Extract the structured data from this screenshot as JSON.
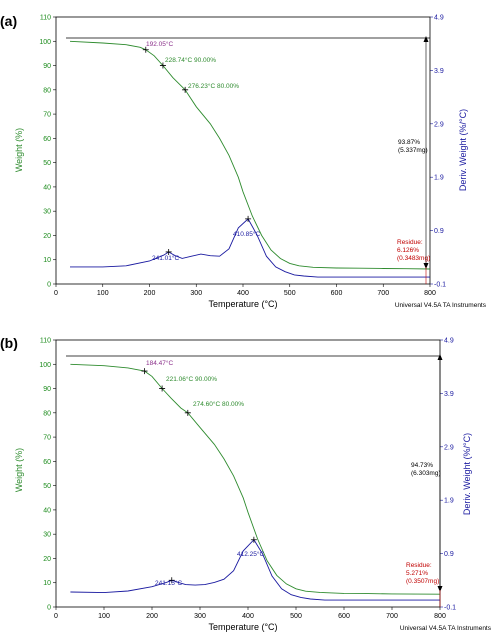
{
  "chart_data": [
    {
      "type": "line",
      "panel_label": "(a)",
      "xlabel": "Temperature (°C)",
      "ylabel": "Weight (%)",
      "y2label": "Deriv. Weight (%/°C)",
      "footer": "Universal V4.5A TA Instruments",
      "xlim": [
        0,
        800
      ],
      "ylim": [
        0,
        110
      ],
      "y2lim": [
        -0.1,
        4.9
      ],
      "xticks": [
        0,
        100,
        200,
        300,
        400,
        500,
        600,
        700,
        800
      ],
      "yticks": [
        0,
        10,
        20,
        30,
        40,
        50,
        60,
        70,
        80,
        90,
        100,
        110
      ],
      "y2ticks": [
        "-0.1",
        "0.9",
        "1.9",
        "2.9",
        "3.9",
        "4.9"
      ],
      "series": [
        {
          "axis": "left",
          "color": "#2e8b2e",
          "x": [
            30,
            100,
            150,
            180,
            192,
            210,
            228.74,
            250,
            276.23,
            300,
            330,
            350,
            370,
            390,
            400,
            420,
            440,
            460,
            480,
            500,
            520,
            550,
            600,
            650,
            700,
            750,
            800
          ],
          "y": [
            100,
            99.3,
            98.6,
            97.5,
            96.5,
            94,
            90,
            85,
            80,
            73,
            66,
            60,
            53,
            44,
            38,
            28,
            20,
            14,
            10.5,
            8.5,
            7.5,
            6.9,
            6.6,
            6.5,
            6.4,
            6.3,
            6.2
          ]
        },
        {
          "axis": "right",
          "color": "#1a1aa0",
          "x": [
            30,
            100,
            150,
            200,
            230,
            241.01,
            255,
            270,
            290,
            310,
            330,
            350,
            370,
            390,
            410.85,
            430,
            450,
            470,
            490,
            510,
            530,
            560,
            600,
            650,
            700,
            750,
            800
          ],
          "y": [
            0.22,
            0.22,
            0.24,
            0.33,
            0.44,
            0.5,
            0.43,
            0.38,
            0.42,
            0.46,
            0.43,
            0.42,
            0.56,
            0.95,
            1.12,
            0.82,
            0.42,
            0.22,
            0.13,
            0.07,
            0.05,
            0.03,
            0.03,
            0.03,
            0.03,
            0.03,
            0.03
          ]
        }
      ],
      "annotations": {
        "onset": "192.05°C",
        "t90": "228.74°C 90.00%",
        "t80": "276.23°C 80.00%",
        "peak1": "241.01°C",
        "peak2": "410.85°C",
        "loss_pct": "93.87%",
        "loss_mg": "(5.337mg)",
        "residue_title": "Residue:",
        "residue_pct": "6.126%",
        "residue_mg": "(0.3483mg)"
      }
    },
    {
      "type": "line",
      "panel_label": "(b)",
      "xlabel": "Temperature (°C)",
      "ylabel": "Weight (%)",
      "y2label": "Deriv. Weight (%/°C)",
      "footer": "Universal V4.5A TA Instruments",
      "xlim": [
        0,
        800
      ],
      "ylim": [
        0,
        110
      ],
      "y2lim": [
        -0.1,
        4.9
      ],
      "xticks": [
        0,
        100,
        200,
        300,
        400,
        500,
        600,
        700,
        800
      ],
      "yticks": [
        0,
        10,
        20,
        30,
        40,
        50,
        60,
        70,
        80,
        90,
        100,
        110
      ],
      "y2ticks": [
        "-0.1",
        "0.9",
        "1.9",
        "2.9",
        "3.9",
        "4.9"
      ],
      "series": [
        {
          "axis": "left",
          "color": "#2e8b2e",
          "x": [
            30,
            100,
            150,
            184.47,
            200,
            221.06,
            240,
            260,
            274.6,
            300,
            330,
            350,
            370,
            390,
            400,
            420,
            440,
            460,
            480,
            500,
            520,
            550,
            600,
            650,
            700,
            750,
            800
          ],
          "y": [
            100,
            99.4,
            98.5,
            97.2,
            95,
            90,
            86,
            82,
            80,
            74,
            67,
            61,
            54,
            45,
            39,
            28,
            19,
            13,
            9.5,
            7.5,
            6.5,
            6.0,
            5.6,
            5.5,
            5.4,
            5.3,
            5.27
          ]
        },
        {
          "axis": "right",
          "color": "#1a1aa0",
          "x": [
            30,
            100,
            150,
            200,
            230,
            241.15,
            255,
            270,
            290,
            310,
            330,
            350,
            370,
            390,
            412.25,
            430,
            450,
            470,
            490,
            510,
            530,
            560,
            600,
            650,
            700,
            750,
            800
          ],
          "y": [
            0.18,
            0.17,
            0.2,
            0.28,
            0.36,
            0.4,
            0.36,
            0.32,
            0.31,
            0.32,
            0.36,
            0.42,
            0.58,
            0.95,
            1.16,
            0.9,
            0.48,
            0.24,
            0.13,
            0.08,
            0.05,
            0.03,
            0.03,
            0.03,
            0.03,
            0.03,
            0.03
          ]
        }
      ],
      "annotations": {
        "onset": "184.47°C",
        "t90": "221.06°C 90.00%",
        "t80": "274.60°C 80.00%",
        "peak1": "241.15°C",
        "peak2": "412.25°C",
        "loss_pct": "94.73%",
        "loss_mg": "(6.303mg)",
        "residue_title": "Residue:",
        "residue_pct": "5.271%",
        "residue_mg": "(0.3507mg)"
      }
    }
  ]
}
